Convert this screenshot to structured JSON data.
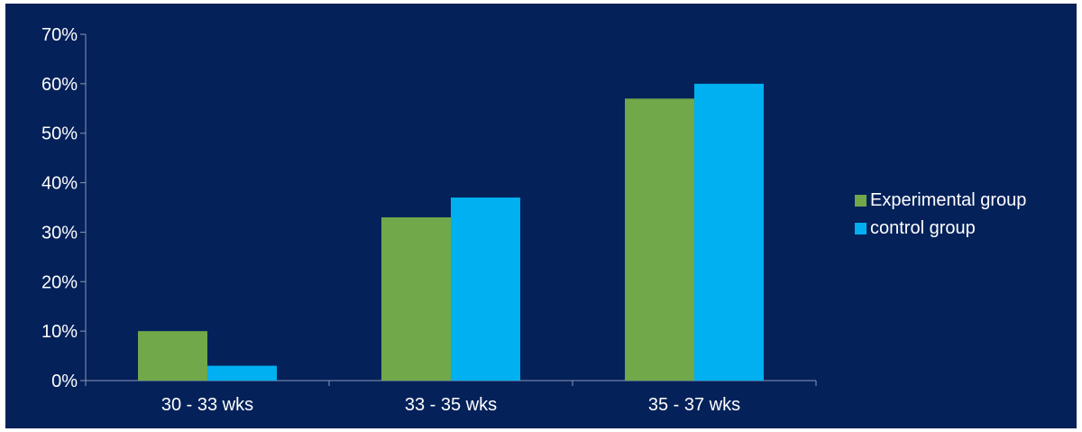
{
  "chart_data": {
    "type": "bar",
    "title": "",
    "xlabel": "",
    "ylabel": "",
    "categories": [
      "30 - 33 wks",
      "33 - 35 wks",
      "35 - 37 wks"
    ],
    "series": [
      {
        "name": "Experimental group",
        "values": [
          10,
          33,
          57
        ],
        "color": "#70a84a"
      },
      {
        "name": "control group",
        "values": [
          3,
          37,
          60
        ],
        "color": "#00b0f0"
      }
    ],
    "ylim": [
      0,
      70
    ],
    "yticks": [
      "0%",
      "10%",
      "20%",
      "30%",
      "40%",
      "50%",
      "60%",
      "70%"
    ],
    "y_unit": "%",
    "grid": false,
    "legend_position": "right",
    "background_color": "#04215a",
    "text_color": "#ffffff",
    "axis_color": "#8a97b4"
  }
}
